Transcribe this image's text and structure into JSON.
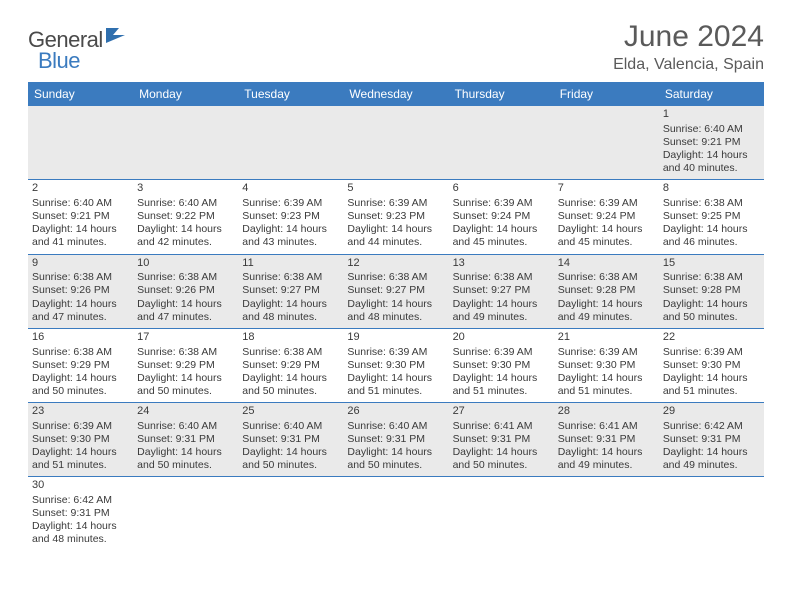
{
  "logo": {
    "text1": "General",
    "text2": "Blue",
    "icon_color": "#2f6fae"
  },
  "title": "June 2024",
  "location": "Elda, Valencia, Spain",
  "colors": {
    "header_bg": "#3b7bbf",
    "header_text": "#ffffff",
    "gray_row": "#eaeaea",
    "white_row": "#ffffff",
    "border": "#3b7bbf",
    "text": "#3a3a3a"
  },
  "weekdays": [
    "Sunday",
    "Monday",
    "Tuesday",
    "Wednesday",
    "Thursday",
    "Friday",
    "Saturday"
  ],
  "weeks": [
    {
      "bg": "gray",
      "days": [
        null,
        null,
        null,
        null,
        null,
        null,
        {
          "n": "1",
          "sr": "6:40 AM",
          "ss": "9:21 PM",
          "dl": "14 hours and 40 minutes."
        }
      ]
    },
    {
      "bg": "white",
      "days": [
        {
          "n": "2",
          "sr": "6:40 AM",
          "ss": "9:21 PM",
          "dl": "14 hours and 41 minutes."
        },
        {
          "n": "3",
          "sr": "6:40 AM",
          "ss": "9:22 PM",
          "dl": "14 hours and 42 minutes."
        },
        {
          "n": "4",
          "sr": "6:39 AM",
          "ss": "9:23 PM",
          "dl": "14 hours and 43 minutes."
        },
        {
          "n": "5",
          "sr": "6:39 AM",
          "ss": "9:23 PM",
          "dl": "14 hours and 44 minutes."
        },
        {
          "n": "6",
          "sr": "6:39 AM",
          "ss": "9:24 PM",
          "dl": "14 hours and 45 minutes."
        },
        {
          "n": "7",
          "sr": "6:39 AM",
          "ss": "9:24 PM",
          "dl": "14 hours and 45 minutes."
        },
        {
          "n": "8",
          "sr": "6:38 AM",
          "ss": "9:25 PM",
          "dl": "14 hours and 46 minutes."
        }
      ]
    },
    {
      "bg": "gray",
      "days": [
        {
          "n": "9",
          "sr": "6:38 AM",
          "ss": "9:26 PM",
          "dl": "14 hours and 47 minutes."
        },
        {
          "n": "10",
          "sr": "6:38 AM",
          "ss": "9:26 PM",
          "dl": "14 hours and 47 minutes."
        },
        {
          "n": "11",
          "sr": "6:38 AM",
          "ss": "9:27 PM",
          "dl": "14 hours and 48 minutes."
        },
        {
          "n": "12",
          "sr": "6:38 AM",
          "ss": "9:27 PM",
          "dl": "14 hours and 48 minutes."
        },
        {
          "n": "13",
          "sr": "6:38 AM",
          "ss": "9:27 PM",
          "dl": "14 hours and 49 minutes."
        },
        {
          "n": "14",
          "sr": "6:38 AM",
          "ss": "9:28 PM",
          "dl": "14 hours and 49 minutes."
        },
        {
          "n": "15",
          "sr": "6:38 AM",
          "ss": "9:28 PM",
          "dl": "14 hours and 50 minutes."
        }
      ]
    },
    {
      "bg": "white",
      "days": [
        {
          "n": "16",
          "sr": "6:38 AM",
          "ss": "9:29 PM",
          "dl": "14 hours and 50 minutes."
        },
        {
          "n": "17",
          "sr": "6:38 AM",
          "ss": "9:29 PM",
          "dl": "14 hours and 50 minutes."
        },
        {
          "n": "18",
          "sr": "6:38 AM",
          "ss": "9:29 PM",
          "dl": "14 hours and 50 minutes."
        },
        {
          "n": "19",
          "sr": "6:39 AM",
          "ss": "9:30 PM",
          "dl": "14 hours and 51 minutes."
        },
        {
          "n": "20",
          "sr": "6:39 AM",
          "ss": "9:30 PM",
          "dl": "14 hours and 51 minutes."
        },
        {
          "n": "21",
          "sr": "6:39 AM",
          "ss": "9:30 PM",
          "dl": "14 hours and 51 minutes."
        },
        {
          "n": "22",
          "sr": "6:39 AM",
          "ss": "9:30 PM",
          "dl": "14 hours and 51 minutes."
        }
      ]
    },
    {
      "bg": "gray",
      "days": [
        {
          "n": "23",
          "sr": "6:39 AM",
          "ss": "9:30 PM",
          "dl": "14 hours and 51 minutes."
        },
        {
          "n": "24",
          "sr": "6:40 AM",
          "ss": "9:31 PM",
          "dl": "14 hours and 50 minutes."
        },
        {
          "n": "25",
          "sr": "6:40 AM",
          "ss": "9:31 PM",
          "dl": "14 hours and 50 minutes."
        },
        {
          "n": "26",
          "sr": "6:40 AM",
          "ss": "9:31 PM",
          "dl": "14 hours and 50 minutes."
        },
        {
          "n": "27",
          "sr": "6:41 AM",
          "ss": "9:31 PM",
          "dl": "14 hours and 50 minutes."
        },
        {
          "n": "28",
          "sr": "6:41 AM",
          "ss": "9:31 PM",
          "dl": "14 hours and 49 minutes."
        },
        {
          "n": "29",
          "sr": "6:42 AM",
          "ss": "9:31 PM",
          "dl": "14 hours and 49 minutes."
        }
      ]
    },
    {
      "bg": "white",
      "last": true,
      "days": [
        {
          "n": "30",
          "sr": "6:42 AM",
          "ss": "9:31 PM",
          "dl": "14 hours and 48 minutes."
        },
        null,
        null,
        null,
        null,
        null,
        null
      ]
    }
  ],
  "labels": {
    "sunrise": "Sunrise: ",
    "sunset": "Sunset: ",
    "daylight": "Daylight: "
  }
}
